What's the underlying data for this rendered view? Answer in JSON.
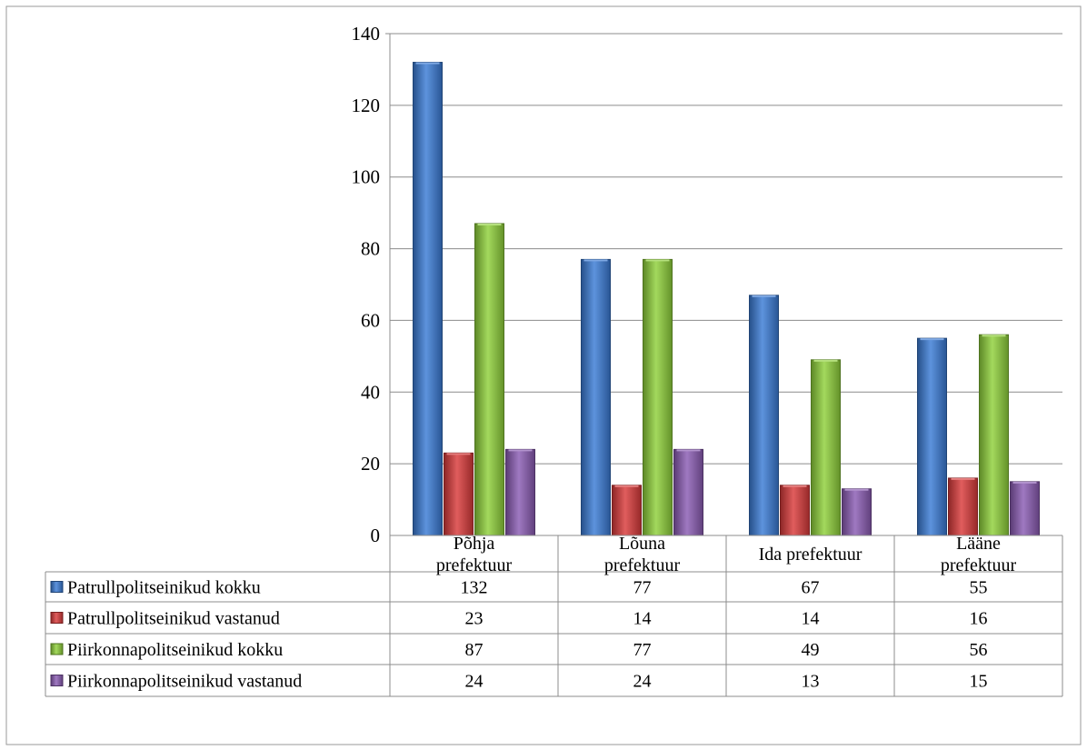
{
  "chart_data": {
    "type": "bar",
    "categories": [
      [
        "Põhja",
        "prefektuur"
      ],
      [
        "Lõuna",
        "prefektuur"
      ],
      [
        "Ida prefektuur"
      ],
      [
        "Lääne",
        "prefektuur"
      ]
    ],
    "series": [
      {
        "name": "Patrullpolitseinikud kokku",
        "values": [
          132,
          77,
          67,
          55
        ],
        "color": "#3a7bd5"
      },
      {
        "name": "Patrullpolitseinikud vastanud",
        "values": [
          23,
          14,
          14,
          16
        ],
        "color": "#d93a3a"
      },
      {
        "name": "Piirkonnapolitseinikud kokku",
        "values": [
          87,
          77,
          49,
          56
        ],
        "color": "#8fd13a"
      },
      {
        "name": "Piirkonnapolitseinikud vastanud",
        "values": [
          24,
          24,
          13,
          15
        ],
        "color": "#8a5bb3"
      }
    ],
    "ylim": [
      0,
      140
    ],
    "yticks": [
      0,
      20,
      40,
      60,
      80,
      100,
      120,
      140
    ],
    "grid": true,
    "legend": "data-table"
  }
}
